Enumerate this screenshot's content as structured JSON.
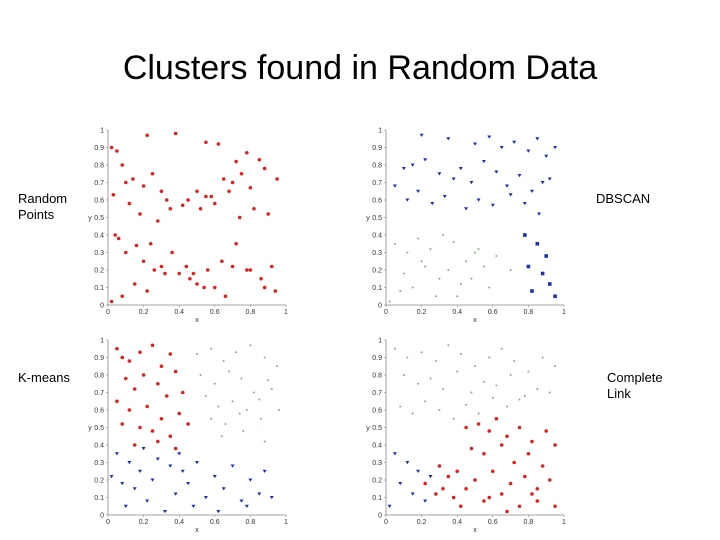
{
  "title": "Clusters found in Random Data",
  "labels": {
    "random_points": [
      "Random",
      "Points"
    ],
    "dbscan": [
      "DBSCAN"
    ],
    "kmeans": [
      "K-means"
    ],
    "complete_link": [
      "Complete",
      "Link"
    ]
  },
  "colors": {
    "red": "#e0201c",
    "blue": "#1c2fb5",
    "green": "#7fb07f"
  },
  "chart_data": [
    {
      "type": "scatter",
      "panel": "Random Points",
      "xlabel": "x",
      "ylabel": "y",
      "xlim": [
        0,
        1
      ],
      "ylim": [
        0,
        1
      ],
      "xticks": [
        0,
        0.2,
        0.4,
        0.6,
        0.8,
        1
      ],
      "yticks": [
        0,
        0.1,
        0.2,
        0.3,
        0.4,
        0.5,
        0.6,
        0.7,
        0.8,
        0.9,
        1
      ],
      "series": [
        {
          "color": "red",
          "marker": "dot",
          "x": [
            0.02,
            0.05,
            0.08,
            0.22,
            0.38,
            0.55,
            0.62,
            0.72,
            0.78,
            0.85,
            0.1,
            0.14,
            0.2,
            0.25,
            0.3,
            0.35,
            0.45,
            0.5,
            0.55,
            0.6,
            0.65,
            0.7,
            0.75,
            0.8,
            0.88,
            0.95,
            0.03,
            0.12,
            0.18,
            0.28,
            0.33,
            0.42,
            0.52,
            0.58,
            0.68,
            0.74,
            0.82,
            0.9,
            0.06,
            0.16,
            0.24,
            0.36,
            0.44,
            0.48,
            0.56,
            0.64,
            0.72,
            0.92,
            0.04,
            0.1,
            0.2,
            0.26,
            0.3,
            0.4,
            0.5,
            0.6,
            0.7,
            0.8,
            0.86,
            0.94,
            0.02,
            0.08,
            0.15,
            0.22,
            0.32,
            0.46,
            0.54,
            0.66,
            0.78,
            0.88
          ],
          "y": [
            0.9,
            0.88,
            0.8,
            0.97,
            0.98,
            0.93,
            0.92,
            0.82,
            0.87,
            0.83,
            0.7,
            0.72,
            0.68,
            0.75,
            0.65,
            0.55,
            0.6,
            0.65,
            0.62,
            0.58,
            0.72,
            0.7,
            0.75,
            0.67,
            0.78,
            0.72,
            0.63,
            0.58,
            0.52,
            0.48,
            0.6,
            0.57,
            0.55,
            0.62,
            0.65,
            0.5,
            0.55,
            0.52,
            0.38,
            0.34,
            0.35,
            0.3,
            0.22,
            0.18,
            0.2,
            0.25,
            0.35,
            0.22,
            0.4,
            0.3,
            0.25,
            0.2,
            0.22,
            0.18,
            0.12,
            0.1,
            0.22,
            0.2,
            0.15,
            0.08,
            0.02,
            0.05,
            0.12,
            0.08,
            0.18,
            0.15,
            0.1,
            0.05,
            0.2,
            0.1
          ]
        }
      ]
    },
    {
      "type": "scatter",
      "panel": "DBSCAN",
      "xlabel": "x",
      "ylabel": "y",
      "xlim": [
        0,
        1
      ],
      "ylim": [
        0,
        1
      ],
      "xticks": [
        0,
        0.2,
        0.4,
        0.6,
        0.8,
        1
      ],
      "yticks": [
        0,
        0.1,
        0.2,
        0.3,
        0.4,
        0.5,
        0.6,
        0.7,
        0.8,
        0.9,
        1
      ],
      "series": [
        {
          "color": "blue",
          "marker": "triangle",
          "x": [
            0.2,
            0.35,
            0.5,
            0.58,
            0.65,
            0.72,
            0.8,
            0.85,
            0.9,
            0.95,
            0.1,
            0.15,
            0.22,
            0.3,
            0.38,
            0.42,
            0.48,
            0.55,
            0.62,
            0.68,
            0.75,
            0.82,
            0.88,
            0.92,
            0.05,
            0.12,
            0.18,
            0.26,
            0.33,
            0.45,
            0.52,
            0.6,
            0.7,
            0.78,
            0.86
          ],
          "y": [
            0.97,
            0.95,
            0.92,
            0.96,
            0.9,
            0.93,
            0.88,
            0.95,
            0.85,
            0.9,
            0.78,
            0.8,
            0.83,
            0.75,
            0.72,
            0.78,
            0.7,
            0.82,
            0.76,
            0.68,
            0.74,
            0.65,
            0.7,
            0.72,
            0.68,
            0.6,
            0.65,
            0.58,
            0.62,
            0.55,
            0.6,
            0.57,
            0.63,
            0.58,
            0.52
          ]
        },
        {
          "color": "blue",
          "marker": "square",
          "x": [
            0.78,
            0.85,
            0.9,
            0.8,
            0.88,
            0.92,
            0.82,
            0.95
          ],
          "y": [
            0.4,
            0.35,
            0.28,
            0.22,
            0.18,
            0.12,
            0.08,
            0.05
          ]
        },
        {
          "color": "green",
          "marker": "dot",
          "x": [
            0.05,
            0.12,
            0.18,
            0.25,
            0.32,
            0.38,
            0.45,
            0.5,
            0.55,
            0.62,
            0.7,
            0.1,
            0.22,
            0.3,
            0.42,
            0.08,
            0.15,
            0.28,
            0.35,
            0.48,
            0.58,
            0.02,
            0.2,
            0.4,
            0.52
          ],
          "y": [
            0.35,
            0.3,
            0.38,
            0.32,
            0.4,
            0.36,
            0.25,
            0.3,
            0.22,
            0.28,
            0.2,
            0.18,
            0.22,
            0.15,
            0.12,
            0.08,
            0.1,
            0.05,
            0.2,
            0.15,
            0.1,
            0.02,
            0.25,
            0.05,
            0.32
          ]
        }
      ]
    },
    {
      "type": "scatter",
      "panel": "K-means",
      "xlabel": "x",
      "ylabel": "y",
      "xlim": [
        0,
        1
      ],
      "ylim": [
        0,
        1
      ],
      "xticks": [
        0,
        0.2,
        0.4,
        0.6,
        0.8,
        1
      ],
      "yticks": [
        0,
        0.1,
        0.2,
        0.3,
        0.4,
        0.5,
        0.6,
        0.7,
        0.8,
        0.9,
        1
      ],
      "series": [
        {
          "color": "red",
          "marker": "dot",
          "x": [
            0.05,
            0.08,
            0.12,
            0.18,
            0.25,
            0.3,
            0.35,
            0.1,
            0.15,
            0.2,
            0.28,
            0.33,
            0.38,
            0.42,
            0.05,
            0.12,
            0.22,
            0.3,
            0.4,
            0.08,
            0.18,
            0.25,
            0.35,
            0.45,
            0.15,
            0.28,
            0.38
          ],
          "y": [
            0.95,
            0.9,
            0.88,
            0.93,
            0.97,
            0.85,
            0.92,
            0.78,
            0.72,
            0.8,
            0.75,
            0.68,
            0.82,
            0.7,
            0.65,
            0.6,
            0.62,
            0.55,
            0.58,
            0.52,
            0.5,
            0.48,
            0.45,
            0.52,
            0.4,
            0.42,
            0.38
          ]
        },
        {
          "color": "blue",
          "marker": "triangle",
          "x": [
            0.05,
            0.12,
            0.2,
            0.28,
            0.35,
            0.42,
            0.5,
            0.6,
            0.7,
            0.8,
            0.88,
            0.08,
            0.15,
            0.25,
            0.38,
            0.45,
            0.55,
            0.65,
            0.75,
            0.85,
            0.1,
            0.22,
            0.32,
            0.48,
            0.62,
            0.78,
            0.92,
            0.02,
            0.18,
            0.4
          ],
          "y": [
            0.35,
            0.3,
            0.38,
            0.32,
            0.28,
            0.25,
            0.3,
            0.22,
            0.28,
            0.2,
            0.25,
            0.18,
            0.15,
            0.2,
            0.12,
            0.18,
            0.1,
            0.15,
            0.08,
            0.12,
            0.05,
            0.08,
            0.02,
            0.05,
            0.02,
            0.05,
            0.1,
            0.22,
            0.25,
            0.35
          ]
        },
        {
          "color": "green",
          "marker": "dot",
          "x": [
            0.5,
            0.58,
            0.65,
            0.72,
            0.8,
            0.88,
            0.95,
            0.52,
            0.6,
            0.68,
            0.75,
            0.82,
            0.9,
            0.55,
            0.62,
            0.7,
            0.78,
            0.85,
            0.92,
            0.58,
            0.66,
            0.74,
            0.86,
            0.96,
            0.64,
            0.76,
            0.88
          ],
          "y": [
            0.92,
            0.95,
            0.88,
            0.93,
            0.97,
            0.9,
            0.85,
            0.8,
            0.75,
            0.82,
            0.78,
            0.7,
            0.77,
            0.68,
            0.62,
            0.65,
            0.6,
            0.66,
            0.72,
            0.55,
            0.52,
            0.58,
            0.55,
            0.6,
            0.45,
            0.48,
            0.42
          ]
        }
      ]
    },
    {
      "type": "scatter",
      "panel": "Complete Link",
      "xlabel": "x",
      "ylabel": "y",
      "xlim": [
        0,
        1
      ],
      "ylim": [
        0,
        1
      ],
      "xticks": [
        0,
        0.2,
        0.4,
        0.6,
        0.8,
        1
      ],
      "yticks": [
        0,
        0.1,
        0.2,
        0.3,
        0.4,
        0.5,
        0.6,
        0.7,
        0.8,
        0.9,
        1
      ],
      "series": [
        {
          "color": "green",
          "marker": "dot",
          "x": [
            0.05,
            0.12,
            0.2,
            0.28,
            0.35,
            0.42,
            0.5,
            0.58,
            0.65,
            0.72,
            0.8,
            0.88,
            0.95,
            0.1,
            0.18,
            0.25,
            0.32,
            0.4,
            0.48,
            0.55,
            0.62,
            0.7,
            0.78,
            0.85,
            0.92,
            0.08,
            0.15,
            0.22,
            0.3,
            0.38,
            0.45,
            0.52,
            0.6,
            0.68,
            0.75
          ],
          "y": [
            0.95,
            0.9,
            0.93,
            0.88,
            0.97,
            0.92,
            0.85,
            0.9,
            0.95,
            0.88,
            0.82,
            0.9,
            0.85,
            0.8,
            0.75,
            0.78,
            0.72,
            0.82,
            0.7,
            0.76,
            0.74,
            0.8,
            0.68,
            0.72,
            0.7,
            0.62,
            0.58,
            0.65,
            0.6,
            0.55,
            0.63,
            0.58,
            0.67,
            0.62,
            0.66
          ]
        },
        {
          "color": "red",
          "marker": "dot",
          "x": [
            0.45,
            0.52,
            0.58,
            0.62,
            0.68,
            0.75,
            0.82,
            0.9,
            0.95,
            0.48,
            0.55,
            0.65,
            0.72,
            0.8,
            0.88,
            0.3,
            0.35,
            0.4,
            0.5,
            0.6,
            0.7,
            0.78,
            0.85,
            0.92,
            0.28,
            0.38,
            0.45,
            0.55,
            0.65,
            0.75,
            0.85,
            0.95,
            0.22,
            0.32,
            0.42,
            0.58,
            0.68,
            0.82
          ],
          "y": [
            0.5,
            0.52,
            0.48,
            0.55,
            0.45,
            0.5,
            0.42,
            0.48,
            0.4,
            0.38,
            0.35,
            0.4,
            0.3,
            0.35,
            0.28,
            0.28,
            0.22,
            0.25,
            0.2,
            0.25,
            0.18,
            0.22,
            0.15,
            0.2,
            0.12,
            0.1,
            0.15,
            0.08,
            0.12,
            0.05,
            0.08,
            0.05,
            0.18,
            0.15,
            0.05,
            0.1,
            0.02,
            0.12
          ]
        },
        {
          "color": "blue",
          "marker": "triangle",
          "x": [
            0.05,
            0.12,
            0.18,
            0.25,
            0.08,
            0.15,
            0.22,
            0.02
          ],
          "y": [
            0.35,
            0.3,
            0.25,
            0.22,
            0.18,
            0.12,
            0.08,
            0.05
          ]
        }
      ]
    }
  ]
}
